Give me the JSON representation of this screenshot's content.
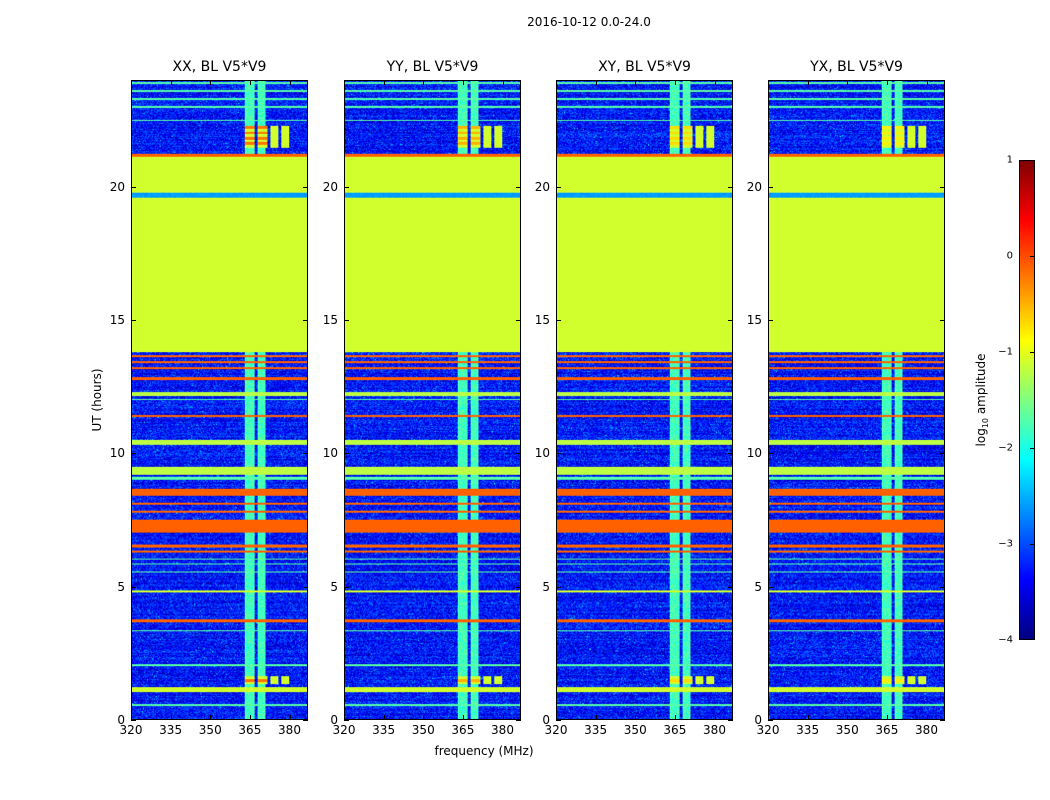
{
  "suptitle": "2016-10-12 0.0-24.0",
  "chart_data": {
    "type": "heatmap",
    "colormap": "jet",
    "ylabel": "UT (hours)",
    "xlabel": "frequency (MHz)",
    "xlim": [
      320,
      387
    ],
    "ylim": [
      0,
      24
    ],
    "xticks": [
      320,
      335,
      350,
      365,
      380
    ],
    "yticks": [
      0,
      5,
      10,
      15,
      20
    ],
    "background_level": -3.3,
    "panels": [
      {
        "title": "XX, BL V5*V9",
        "seed": 1,
        "block_level": -0.2
      },
      {
        "title": "YY, BL V5*V9",
        "seed": 2,
        "block_level": -0.5
      },
      {
        "title": "XY, BL V5*V9",
        "seed": 3,
        "block_level": -0.7
      },
      {
        "title": "YX, BL V5*V9",
        "seed": 4,
        "block_level": -0.8
      }
    ],
    "time_bands": [
      {
        "t0": 13.8,
        "t1": 21.2,
        "level": -1.1
      },
      {
        "t0": 19.6,
        "t1": 19.8,
        "level": -2.6
      },
      {
        "t0": 1.0,
        "t1": 1.2,
        "level": -1.1
      },
      {
        "t0": 4.75,
        "t1": 4.82,
        "level": -1.1
      },
      {
        "t0": 9.2,
        "t1": 9.5,
        "level": -1.2
      },
      {
        "t0": 10.3,
        "t1": 10.5,
        "level": -1.2
      },
      {
        "t0": 12.15,
        "t1": 12.3,
        "level": -1.2
      },
      {
        "t0": 3.65,
        "t1": 3.75,
        "level": -0.1
      },
      {
        "t0": 6.25,
        "t1": 6.35,
        "level": -0.1
      },
      {
        "t0": 6.45,
        "t1": 6.55,
        "level": -0.1
      },
      {
        "t0": 7.0,
        "t1": 7.5,
        "level": -0.1
      },
      {
        "t0": 7.75,
        "t1": 7.85,
        "level": -0.1
      },
      {
        "t0": 8.05,
        "t1": 8.15,
        "level": -0.1
      },
      {
        "t0": 8.4,
        "t1": 8.65,
        "level": -0.1
      },
      {
        "t0": 11.35,
        "t1": 11.45,
        "level": -0.1
      },
      {
        "t0": 12.75,
        "t1": 12.85,
        "level": -0.1
      },
      {
        "t0": 13.15,
        "t1": 13.25,
        "level": -0.1
      },
      {
        "t0": 13.4,
        "t1": 13.48,
        "level": -0.1
      },
      {
        "t0": 13.6,
        "t1": 13.7,
        "level": -0.1
      },
      {
        "t0": 21.15,
        "t1": 21.25,
        "level": -0.1
      },
      {
        "t0": 0.5,
        "t1": 0.55,
        "level": -1.7
      },
      {
        "t0": 2.0,
        "t1": 2.05,
        "level": -1.7
      },
      {
        "t0": 3.3,
        "t1": 3.35,
        "level": -1.7
      },
      {
        "t0": 5.5,
        "t1": 5.55,
        "level": -1.7
      },
      {
        "t0": 5.8,
        "t1": 5.85,
        "level": -1.7
      },
      {
        "t0": 6.0,
        "t1": 6.05,
        "level": -1.7
      },
      {
        "t0": 9.0,
        "t1": 9.1,
        "level": -1.7
      },
      {
        "t0": 12.0,
        "t1": 12.05,
        "level": -1.7
      },
      {
        "t0": 22.5,
        "t1": 22.55,
        "level": -1.7
      },
      {
        "t0": 23.0,
        "t1": 23.05,
        "level": -1.7
      },
      {
        "t0": 23.3,
        "t1": 23.35,
        "level": -1.7
      },
      {
        "t0": 23.6,
        "t1": 23.65,
        "level": -1.7
      },
      {
        "t0": 23.9,
        "t1": 23.95,
        "level": -1.7
      }
    ],
    "rfi_channels": [
      {
        "f0": 363,
        "f1": 367,
        "level": -1.8
      },
      {
        "f0": 368,
        "f1": 371,
        "level": -1.8
      }
    ],
    "rfi_blocks": [
      {
        "t0": 1.3,
        "t1": 1.6,
        "f": [
          [
            363,
            367
          ],
          [
            368,
            372
          ],
          [
            373,
            376
          ],
          [
            377,
            380
          ]
        ]
      },
      {
        "t0": 21.5,
        "t1": 22.3,
        "f": [
          [
            363,
            367
          ],
          [
            368,
            372
          ],
          [
            373,
            376
          ],
          [
            377,
            380
          ]
        ]
      }
    ],
    "colorbar": {
      "label": "log10 amplitude",
      "label_base": "log",
      "label_sub": "10",
      "label_rest": " amplitude",
      "range": [
        -4,
        1
      ],
      "ticks": [
        "1",
        "0",
        "−1",
        "−2",
        "−3",
        "−4"
      ]
    }
  }
}
